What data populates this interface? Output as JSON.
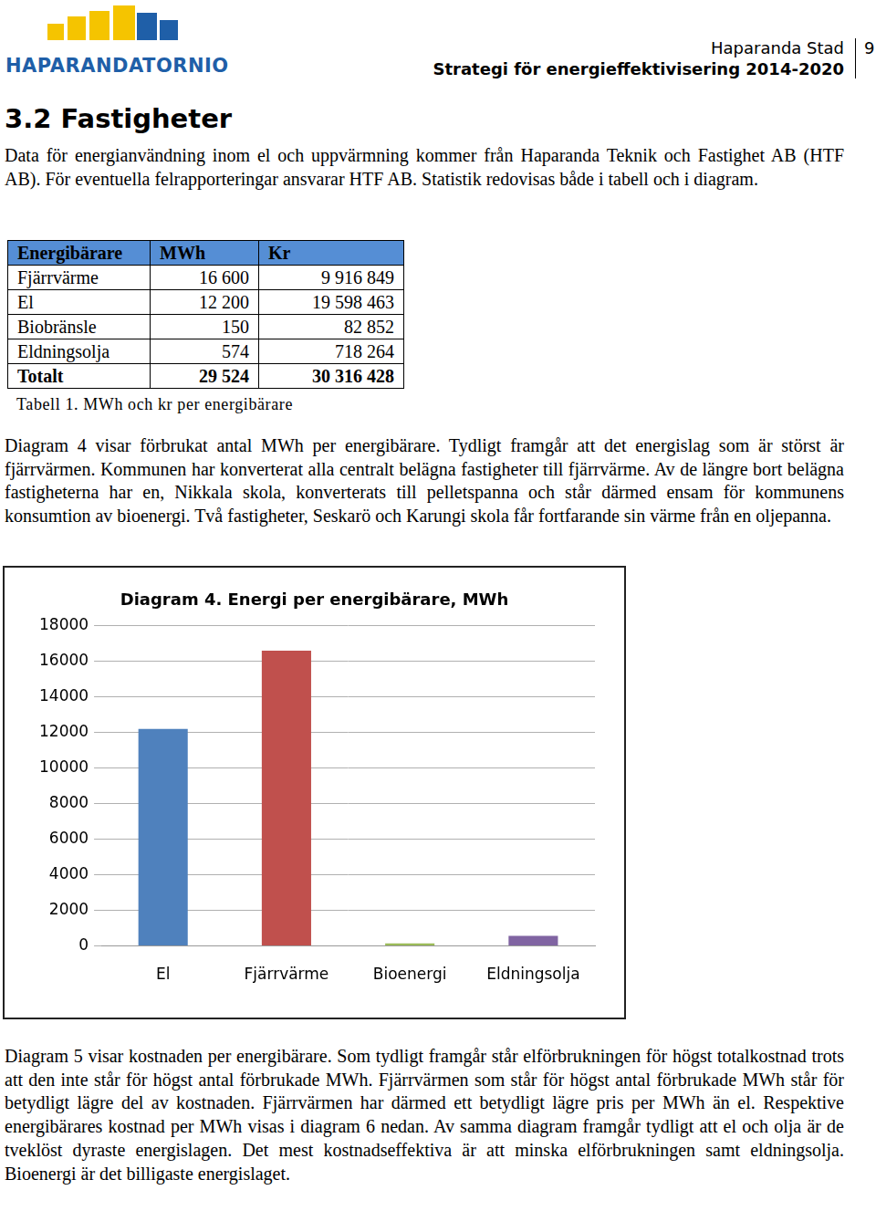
{
  "header": {
    "logo": "HAPARANDATORNIO",
    "line1": "Haparanda Stad",
    "line2": "Strategi för energieffektivisering 2014-2020",
    "page": "9"
  },
  "heading": "3.2 Fastigheter",
  "paragraphs": [
    "Data för energianvändning inom el och uppvärmning kommer från Haparanda Teknik och Fastighet AB (HTF AB). För eventuella felrapporteringar ansvarar HTF AB. Statistik redovisas både i tabell och i diagram.",
    "Diagram 4 visar förbrukat antal MWh per energibärare. Tydligt framgår att det energislag som är störst är fjärrvärmen. Kommunen har konverterat alla centralt belägna fastigheter till fjärrvärme. Av de längre bort belägna fastigheterna har en, Nikkala skola, konverterats till pelletspanna och står därmed ensam för kommunens konsumtion av bioenergi. Två fastigheter, Seskarö och Karungi skola får fortfarande sin värme från en oljepanna.",
    "Diagram 5 visar kostnaden per energibärare. Som tydligt framgår står elförbrukningen för högst totalkostnad trots att den inte står för högst antal förbrukade MWh. Fjärrvärmen som står för högst antal förbrukade MWh står för betydligt lägre del av kostnaden. Fjärrvärmen har därmed ett betydligt lägre pris per MWh än el. Respektive energibärares kostnad per MWh visas i diagram 6 nedan. Av samma diagram framgår tydligt att el och olja är de tveklöst dyraste energislagen. Det mest kostnadseffektiva är att minska elförbrukningen samt eldningsolja. Bioenergi är det billigaste energislaget."
  ],
  "table": {
    "header": [
      "Energibärare",
      "MWh",
      "Kr"
    ],
    "rows": [
      [
        "Fjärrvärme",
        "16 600",
        "9 916 849"
      ],
      [
        "El",
        "12 200",
        "19 598 463"
      ],
      [
        "Biobränsle",
        "150",
        "82 852"
      ],
      [
        "Eldningsolja",
        "574",
        "718 264"
      ],
      [
        "Totalt",
        "29 524",
        "30 316 428"
      ]
    ],
    "caption": "Tabell 1. MWh och kr per energibärare"
  },
  "chart_data": {
    "type": "bar",
    "title": "Diagram 4. Energi per energibärare, MWh",
    "categories": [
      "El",
      "Fjärrvärme",
      "Bioenergi",
      "Eldningsolja"
    ],
    "values": [
      12200,
      16600,
      150,
      574
    ],
    "colors": [
      "#4f81bd",
      "#c0504d",
      "#9bbb59",
      "#8064a2"
    ],
    "ylim": [
      0,
      18000
    ],
    "yticks": [
      0,
      2000,
      4000,
      6000,
      8000,
      10000,
      12000,
      14000,
      16000,
      18000
    ],
    "grid": true
  }
}
